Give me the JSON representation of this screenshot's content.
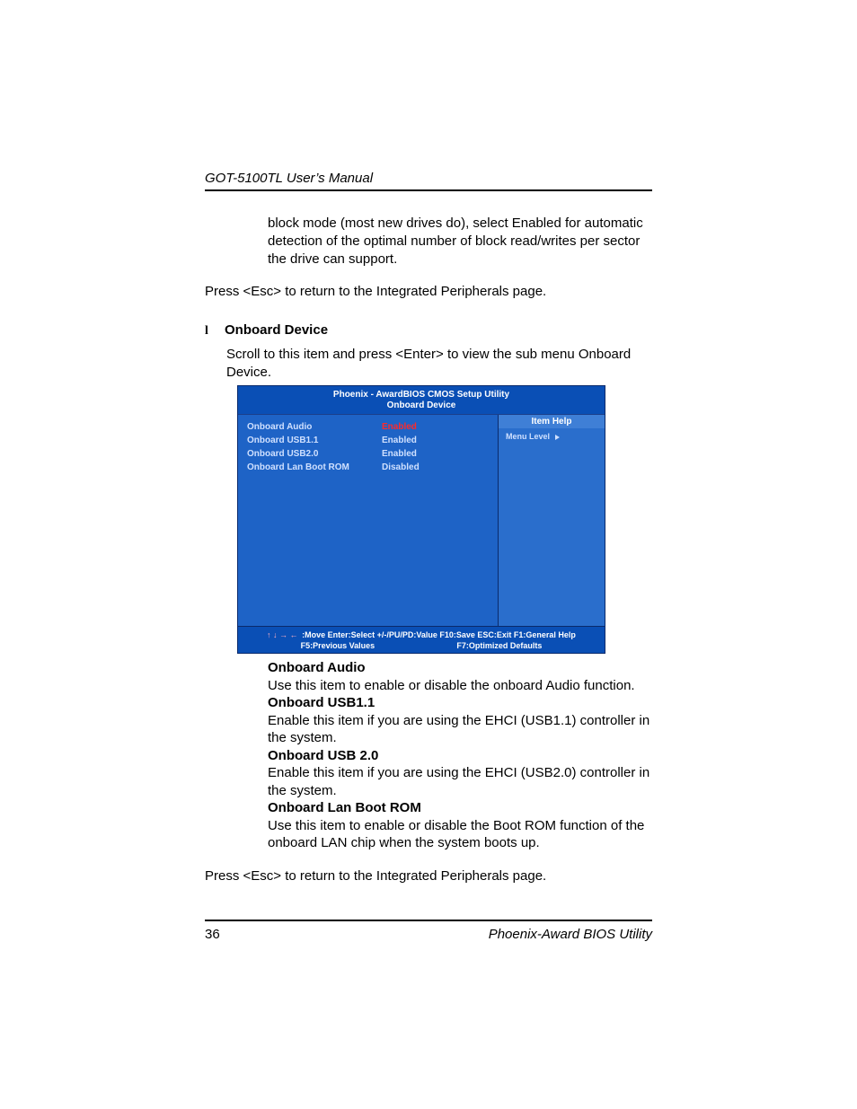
{
  "header": {
    "title": "GOT-5100TL User’s Manual"
  },
  "intro": {
    "block_mode": "block mode (most new drives do), select Enabled for automatic detection of the optimal number of block read/writes per sector the drive can support.",
    "return1": "Press <Esc> to return to the Integrated Peripherals page."
  },
  "section": {
    "bullet": "l",
    "title": "Onboard Device",
    "desc": "Scroll to this item and press <Enter> to view the sub menu Onboard Device."
  },
  "bios": {
    "title_line1": "Phoenix - AwardBIOS CMOS Setup Utility",
    "title_line2": "Onboard Device",
    "item_help": "Item Help",
    "menu_level": "Menu Level",
    "colors": {
      "bg_left": "#1e63c6",
      "bg_right": "#2a6ecc",
      "header": "#0a4fb5",
      "text": "#cfe0ff",
      "value_selected": "#ff2a2a"
    },
    "rows": [
      {
        "label": "Onboard Audio",
        "value": "Enabled",
        "selected": true
      },
      {
        "label": "Onboard USB1.1",
        "value": "Enabled",
        "selected": false
      },
      {
        "label": "Onboard USB2.0",
        "value": "Enabled",
        "selected": false
      },
      {
        "label": "Onboard Lan Boot ROM",
        "value": "Disabled",
        "selected": false
      }
    ],
    "footer": {
      "arrows": "↑ ↓ → ←",
      "line1": ":Move  Enter:Select  +/-/PU/PD:Value  F10:Save  ESC:Exit  F1:General Help",
      "f5": "F5:Previous Values",
      "f7": "F7:Optimized Defaults"
    }
  },
  "defs": {
    "audio_h": "Onboard Audio",
    "audio_t": "Use this item to enable or disable the onboard Audio function.",
    "usb11_h": "Onboard USB1.1",
    "usb11_t": "Enable this item if you are using the EHCI (USB1.1) controller in the system.",
    "usb20_h": "Onboard USB 2.0",
    "usb20_t": "Enable this item if you are using the EHCI (USB2.0) controller in the system.",
    "lan_h": "Onboard Lan Boot ROM",
    "lan_t": "Use this item to enable or disable the Boot ROM function of the onboard LAN chip when the system boots up."
  },
  "return2": "Press <Esc> to return to the Integrated Peripherals page.",
  "footer": {
    "page": "36",
    "right": "Phoenix-Award BIOS Utility"
  }
}
